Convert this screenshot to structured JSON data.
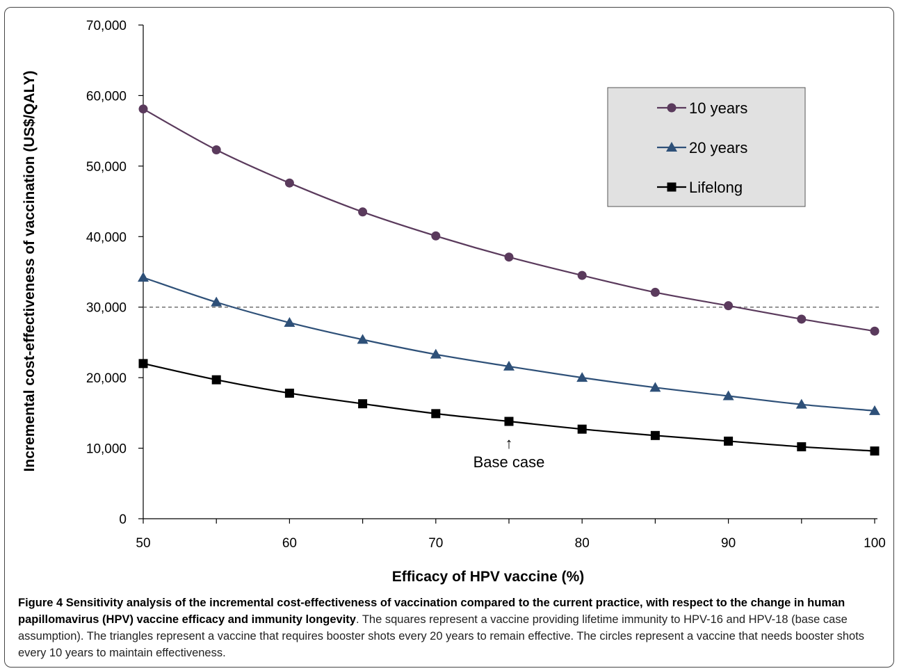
{
  "chart_data": {
    "type": "line",
    "xlabel": "Efficacy of HPV vaccine (%)",
    "ylabel": "Incremental cost-effectiveness of vaccination (US$/QALY)",
    "xlim": [
      50,
      100
    ],
    "ylim": [
      0,
      70000
    ],
    "x_ticks": [
      "50",
      "60",
      "70",
      "80",
      "90",
      "100"
    ],
    "y_ticks": [
      "0",
      "10,000",
      "20,000",
      "30,000",
      "40,000",
      "50,000",
      "60,000",
      "70,000"
    ],
    "x": [
      50,
      55,
      60,
      65,
      70,
      75,
      80,
      85,
      90,
      95,
      100
    ],
    "series": [
      {
        "name": "10 years",
        "marker": "circle",
        "color": "#5a3a5c",
        "values": [
          58100,
          52300,
          47600,
          43500,
          40100,
          37100,
          34500,
          32100,
          30200,
          28300,
          26600
        ]
      },
      {
        "name": "20 years",
        "marker": "triangle",
        "color": "#2e5078",
        "values": [
          34200,
          30700,
          27800,
          25400,
          23300,
          21600,
          20000,
          18600,
          17400,
          16200,
          15300
        ]
      },
      {
        "name": "Lifelong",
        "marker": "square",
        "color": "#000000",
        "values": [
          22000,
          19700,
          17800,
          16300,
          14900,
          13800,
          12700,
          11800,
          11000,
          10200,
          9600
        ]
      }
    ],
    "threshold": 30000,
    "annotation": {
      "label": "Base case",
      "arrow": "↑",
      "x": 75
    },
    "legend_position": "top-right",
    "grid": false
  },
  "caption": {
    "figure_label": "Figure 4",
    "title": "Sensitivity analysis of the incremental cost-effectiveness of vaccination compared to the current practice, with respect to the change in human papillomavirus (HPV) vaccine efficacy and immunity longevity",
    "body": ". The squares represent a vaccine providing lifetime immunity to HPV-16 and HPV-18 (base case assumption). The triangles represent a vaccine that requires booster shots every 20 years to remain effective. The circles represent a vaccine that needs booster shots every 10 years to maintain effectiveness."
  }
}
